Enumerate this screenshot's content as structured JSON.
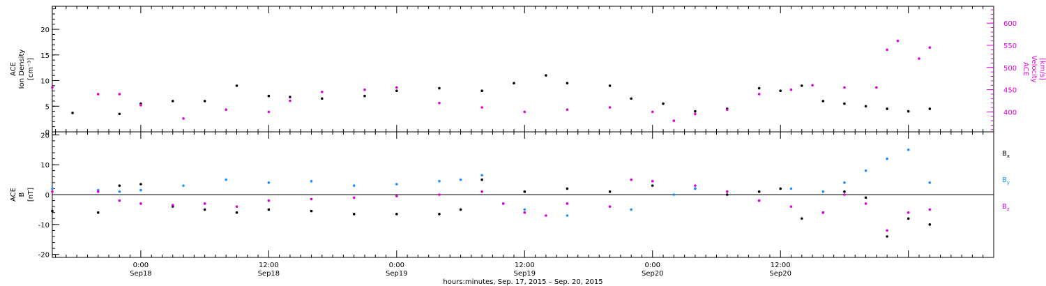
{
  "chart_data": [
    {
      "type": "scatter",
      "panel": "top",
      "ylabel_left": [
        "ACE",
        "Ion Density",
        "[cm⁻³]"
      ],
      "ylabel_right": [
        "ACE",
        "Velocity",
        "[km/s]"
      ],
      "ylim_left": [
        0,
        24.5
      ],
      "yticks_left": [
        0,
        5,
        10,
        15,
        20
      ],
      "ylim_right": [
        355,
        638
      ],
      "yticks_right": [
        400,
        450,
        500,
        550,
        600
      ],
      "colors": {
        "density": "#000000",
        "velocity": "#dd00dd"
      },
      "series": [
        {
          "axis": "left",
          "color": "#000000",
          "x": [
            -6.4,
            -2.0,
            0.0,
            3.0,
            6.0,
            9.0,
            12.0,
            14.0,
            17.0,
            21.0,
            24.0,
            28.0,
            32.0,
            35.0,
            38.0,
            40.0,
            44.0,
            46.0,
            49.0,
            52.0,
            55.0,
            58.0,
            60.0,
            62.0,
            64.0,
            66.0,
            68.0,
            70.0,
            72.0,
            74.0
          ],
          "values": [
            3.7,
            3.5,
            5.5,
            6.0,
            6.0,
            9.0,
            7.0,
            6.8,
            6.5,
            7.0,
            8.0,
            8.5,
            8.0,
            9.5,
            11.0,
            9.5,
            9.0,
            6.5,
            5.5,
            4.0,
            4.5,
            8.5,
            8.0,
            9.0,
            6.0,
            5.5,
            5.0,
            4.5,
            4.0,
            4.5
          ]
        },
        {
          "axis": "right",
          "color": "#dd00dd",
          "x": [
            -8.3,
            -4.0,
            -2.0,
            0.0,
            4.0,
            8.0,
            12.0,
            14.0,
            17.0,
            21.0,
            24.0,
            28.0,
            32.0,
            36.0,
            40.0,
            44.0,
            48.0,
            50.0,
            52.0,
            55.0,
            58.0,
            61.0,
            63.0,
            66.0,
            69.0,
            70.0,
            71.0,
            73.0,
            74.0
          ],
          "values": [
            455,
            440,
            440,
            415,
            385,
            405,
            400,
            425,
            445,
            450,
            455,
            420,
            410,
            400,
            405,
            410,
            400,
            380,
            395,
            405,
            440,
            450,
            460,
            455,
            455,
            540,
            560,
            520,
            545
          ]
        }
      ]
    },
    {
      "type": "scatter",
      "panel": "bottom",
      "ylabel": [
        "ACE",
        "B",
        "[nT]"
      ],
      "ylim": [
        -21,
        21
      ],
      "yticks": [
        -20,
        -10,
        0,
        10,
        20
      ],
      "legend": [
        {
          "label": "B",
          "sub": "x",
          "color": "#000000"
        },
        {
          "label": "B",
          "sub": "y",
          "color": "#1e90ff"
        },
        {
          "label": "B",
          "sub": "z",
          "color": "#dd00dd"
        }
      ],
      "series": [
        {
          "color": "#000000",
          "x": [
            -8.3,
            -4.0,
            -2.0,
            0.0,
            3.0,
            6.0,
            9.0,
            12.0,
            16.0,
            20.0,
            24.0,
            28.0,
            30.0,
            32.0,
            36.0,
            40.0,
            44.0,
            48.0,
            52.0,
            55.0,
            58.0,
            60.0,
            62.0,
            64.0,
            66.0,
            68.0,
            70.0,
            72.0,
            74.0
          ],
          "values": [
            -5.5,
            -6.0,
            3.0,
            3.5,
            -4.0,
            -5.0,
            -6.0,
            -5.0,
            -5.5,
            -6.5,
            -6.5,
            -6.5,
            -5.0,
            5.0,
            1.0,
            2.0,
            1.0,
            3.0,
            2.0,
            0.0,
            1.0,
            2.0,
            -8.0,
            -6.0,
            1.0,
            -1.0,
            -14.0,
            -8.0,
            -10.0
          ]
        },
        {
          "color": "#1e90ff",
          "x": [
            -8.3,
            -4.0,
            -2.0,
            0.0,
            4.0,
            8.0,
            12.0,
            16.0,
            20.0,
            24.0,
            28.0,
            30.0,
            32.0,
            34.0,
            36.0,
            40.0,
            44.0,
            46.0,
            50.0,
            52.0,
            55.0,
            58.0,
            61.0,
            64.0,
            66.0,
            68.0,
            70.0,
            72.0,
            74.0
          ],
          "values": [
            2.0,
            1.5,
            1.0,
            1.5,
            3.0,
            5.0,
            4.0,
            4.5,
            3.0,
            3.5,
            4.5,
            5.0,
            6.5,
            -3.0,
            -5.0,
            -7.0,
            -4.0,
            -5.0,
            0.0,
            2.0,
            1.0,
            -2.0,
            2.0,
            1.0,
            4.0,
            8.0,
            12.0,
            15.0,
            4.0
          ]
        },
        {
          "color": "#dd00dd",
          "x": [
            -8.3,
            -4.0,
            -2.0,
            0.0,
            3.0,
            6.0,
            9.0,
            12.0,
            16.0,
            20.0,
            24.0,
            28.0,
            32.0,
            34.0,
            36.0,
            38.0,
            40.0,
            44.0,
            46.0,
            48.0,
            52.0,
            55.0,
            58.0,
            61.0,
            64.0,
            66.0,
            68.0,
            70.0,
            72.0,
            74.0
          ],
          "values": [
            1.0,
            1.0,
            -2.0,
            -3.0,
            -3.5,
            -3.0,
            -4.0,
            -2.0,
            -1.5,
            -1.0,
            -0.5,
            0.0,
            1.0,
            -3.0,
            -6.0,
            -7.0,
            -3.0,
            -4.0,
            5.0,
            4.5,
            3.0,
            1.0,
            -2.0,
            -4.0,
            -6.0,
            0.0,
            -3.0,
            -12.0,
            -6.0,
            -5.0
          ]
        }
      ]
    }
  ],
  "xaxis": {
    "xlim": [
      -8.3,
      80.0
    ],
    "major_ticks": [
      0,
      12,
      24,
      36,
      48,
      60,
      72
    ],
    "tick_labels": [
      {
        "time": "0:00",
        "day": "Sep18"
      },
      {
        "time": "12:00",
        "day": "Sep18"
      },
      {
        "time": "0:00",
        "day": "Sep19"
      },
      {
        "time": "12:00",
        "day": "Sep19"
      },
      {
        "time": "0:00",
        "day": "Sep20"
      },
      {
        "time": "12:00",
        "day": "Sep20"
      }
    ],
    "xlabel": "hours:minutes, Sep. 17, 2015 – Sep. 20, 2015"
  }
}
